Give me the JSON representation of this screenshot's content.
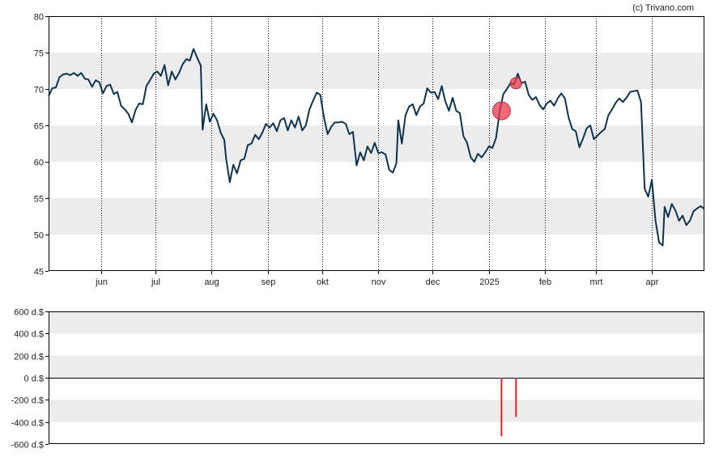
{
  "copyright": "(c) Trivano.com",
  "chart_data": [
    {
      "type": "line",
      "title": "",
      "xlabel": "",
      "ylabel": "",
      "ylim": [
        45,
        80
      ],
      "y_ticks": [
        45,
        50,
        55,
        60,
        65,
        70,
        75,
        80
      ],
      "x_start": "2024-05-03",
      "x_end": "2025-04-30",
      "x_tick_dates": [
        "2024-06-01",
        "2024-07-01",
        "2024-08-01",
        "2024-09-01",
        "2024-10-01",
        "2024-11-01",
        "2024-12-01",
        "2025-01-01",
        "2025-02-01",
        "2025-03-01",
        "2025-04-01"
      ],
      "x_tick_labels": [
        "jun",
        "jul",
        "aug",
        "sep",
        "okt",
        "nov",
        "dec",
        "2025",
        "feb",
        "mrt",
        "apr"
      ],
      "grid": "alternating horizontal bands, dotted vertical lines at month starts",
      "line_color": "#0e3350",
      "series": [
        {
          "points": [
            [
              "2024-05-03",
              69.0
            ],
            [
              "2024-05-05",
              70.1
            ],
            [
              "2024-05-07",
              70.2
            ],
            [
              "2024-05-09",
              71.6
            ],
            [
              "2024-05-11",
              72.0
            ],
            [
              "2024-05-13",
              72.1
            ],
            [
              "2024-05-15",
              71.9
            ],
            [
              "2024-05-17",
              72.2
            ],
            [
              "2024-05-19",
              71.8
            ],
            [
              "2024-05-21",
              72.2
            ],
            [
              "2024-05-23",
              71.4
            ],
            [
              "2024-05-25",
              71.3
            ],
            [
              "2024-05-27",
              70.3
            ],
            [
              "2024-05-29",
              71.2
            ],
            [
              "2024-05-31",
              70.9
            ],
            [
              "2024-06-02",
              69.4
            ],
            [
              "2024-06-04",
              70.4
            ],
            [
              "2024-06-06",
              70.6
            ],
            [
              "2024-06-08",
              69.3
            ],
            [
              "2024-06-10",
              69.6
            ],
            [
              "2024-06-12",
              67.7
            ],
            [
              "2024-06-14",
              67.2
            ],
            [
              "2024-06-16",
              66.6
            ],
            [
              "2024-06-18",
              65.4
            ],
            [
              "2024-06-20",
              67.1
            ],
            [
              "2024-06-22",
              68.0
            ],
            [
              "2024-06-24",
              67.9
            ],
            [
              "2024-06-26",
              70.4
            ],
            [
              "2024-06-28",
              71.2
            ],
            [
              "2024-06-30",
              72.1
            ],
            [
              "2024-07-02",
              72.4
            ],
            [
              "2024-07-04",
              71.8
            ],
            [
              "2024-07-06",
              73.3
            ],
            [
              "2024-07-08",
              70.5
            ],
            [
              "2024-07-10",
              72.4
            ],
            [
              "2024-07-12",
              71.3
            ],
            [
              "2024-07-14",
              72.2
            ],
            [
              "2024-07-16",
              73.4
            ],
            [
              "2024-07-18",
              74.1
            ],
            [
              "2024-07-20",
              73.9
            ],
            [
              "2024-07-22",
              75.5
            ],
            [
              "2024-07-24",
              74.3
            ],
            [
              "2024-07-26",
              73.2
            ],
            [
              "2024-07-27",
              64.4
            ],
            [
              "2024-07-29",
              67.9
            ],
            [
              "2024-07-31",
              65.5
            ],
            [
              "2024-08-02",
              66.6
            ],
            [
              "2024-08-04",
              65.7
            ],
            [
              "2024-08-06",
              64.0
            ],
            [
              "2024-08-08",
              63.0
            ],
            [
              "2024-08-09",
              60.4
            ],
            [
              "2024-08-11",
              57.2
            ],
            [
              "2024-08-13",
              59.6
            ],
            [
              "2024-08-15",
              58.4
            ],
            [
              "2024-08-17",
              60.2
            ],
            [
              "2024-08-19",
              60.4
            ],
            [
              "2024-08-21",
              62.3
            ],
            [
              "2024-08-23",
              62.5
            ],
            [
              "2024-08-25",
              63.7
            ],
            [
              "2024-08-27",
              63.1
            ],
            [
              "2024-08-29",
              64.0
            ],
            [
              "2024-08-31",
              65.2
            ],
            [
              "2024-09-02",
              64.7
            ],
            [
              "2024-09-04",
              65.3
            ],
            [
              "2024-09-06",
              64.2
            ],
            [
              "2024-09-08",
              65.7
            ],
            [
              "2024-09-10",
              66.0
            ],
            [
              "2024-09-12",
              64.3
            ],
            [
              "2024-09-14",
              65.7
            ],
            [
              "2024-09-16",
              64.7
            ],
            [
              "2024-09-18",
              66.2
            ],
            [
              "2024-09-20",
              64.3
            ],
            [
              "2024-09-22",
              65.0
            ],
            [
              "2024-09-24",
              67.2
            ],
            [
              "2024-09-26",
              68.4
            ],
            [
              "2024-09-28",
              69.5
            ],
            [
              "2024-09-30",
              69.2
            ],
            [
              "2024-10-02",
              66.1
            ],
            [
              "2024-10-04",
              63.8
            ],
            [
              "2024-10-06",
              64.8
            ],
            [
              "2024-10-08",
              65.4
            ],
            [
              "2024-10-10",
              65.4
            ],
            [
              "2024-10-12",
              65.5
            ],
            [
              "2024-10-14",
              65.2
            ],
            [
              "2024-10-16",
              63.8
            ],
            [
              "2024-10-18",
              64.1
            ],
            [
              "2024-10-20",
              59.5
            ],
            [
              "2024-10-22",
              61.3
            ],
            [
              "2024-10-24",
              60.2
            ],
            [
              "2024-10-26",
              62.1
            ],
            [
              "2024-10-28",
              61.2
            ],
            [
              "2024-10-30",
              62.6
            ],
            [
              "2024-11-01",
              61.2
            ],
            [
              "2024-11-03",
              61.3
            ],
            [
              "2024-11-05",
              61.0
            ],
            [
              "2024-11-07",
              58.9
            ],
            [
              "2024-11-09",
              58.5
            ],
            [
              "2024-11-11",
              59.8
            ],
            [
              "2024-11-12",
              65.7
            ],
            [
              "2024-11-14",
              62.5
            ],
            [
              "2024-11-16",
              66.4
            ],
            [
              "2024-11-18",
              67.6
            ],
            [
              "2024-11-20",
              67.9
            ],
            [
              "2024-11-22",
              66.4
            ],
            [
              "2024-11-24",
              67.6
            ],
            [
              "2024-11-26",
              68.0
            ],
            [
              "2024-11-28",
              70.1
            ],
            [
              "2024-11-30",
              69.5
            ],
            [
              "2024-12-02",
              69.6
            ],
            [
              "2024-12-04",
              68.6
            ],
            [
              "2024-12-06",
              70.4
            ],
            [
              "2024-12-08",
              68.3
            ],
            [
              "2024-12-10",
              67.0
            ],
            [
              "2024-12-12",
              68.8
            ],
            [
              "2024-12-14",
              67.0
            ],
            [
              "2024-12-16",
              66.7
            ],
            [
              "2024-12-18",
              63.5
            ],
            [
              "2024-12-20",
              62.6
            ],
            [
              "2024-12-22",
              60.6
            ],
            [
              "2024-12-24",
              60.0
            ],
            [
              "2024-12-26",
              61.1
            ],
            [
              "2024-12-28",
              60.6
            ],
            [
              "2024-12-30",
              61.3
            ],
            [
              "2025-01-01",
              62.1
            ],
            [
              "2025-01-03",
              61.9
            ],
            [
              "2025-01-05",
              63.3
            ],
            [
              "2025-01-07",
              67.0
            ],
            [
              "2025-01-09",
              69.3
            ],
            [
              "2025-01-11",
              70.0
            ],
            [
              "2025-01-13",
              70.8
            ],
            [
              "2025-01-15",
              70.6
            ],
            [
              "2025-01-17",
              72.1
            ],
            [
              "2025-01-19",
              70.8
            ],
            [
              "2025-01-21",
              71.0
            ],
            [
              "2025-01-23",
              69.2
            ],
            [
              "2025-01-25",
              68.5
            ],
            [
              "2025-01-27",
              68.9
            ],
            [
              "2025-01-29",
              67.8
            ],
            [
              "2025-01-31",
              67.2
            ],
            [
              "2025-02-02",
              68.0
            ],
            [
              "2025-02-04",
              68.4
            ],
            [
              "2025-02-06",
              67.7
            ],
            [
              "2025-02-08",
              68.7
            ],
            [
              "2025-02-10",
              69.4
            ],
            [
              "2025-02-12",
              68.7
            ],
            [
              "2025-02-14",
              66.1
            ],
            [
              "2025-02-16",
              64.5
            ],
            [
              "2025-02-18",
              64.2
            ],
            [
              "2025-02-20",
              62.0
            ],
            [
              "2025-02-22",
              63.2
            ],
            [
              "2025-02-24",
              64.6
            ],
            [
              "2025-02-26",
              65.0
            ],
            [
              "2025-02-28",
              63.1
            ],
            [
              "2025-03-02",
              63.6
            ],
            [
              "2025-03-04",
              64.1
            ],
            [
              "2025-03-06",
              64.5
            ],
            [
              "2025-03-08",
              66.4
            ],
            [
              "2025-03-10",
              67.2
            ],
            [
              "2025-03-12",
              68.1
            ],
            [
              "2025-03-14",
              68.7
            ],
            [
              "2025-03-16",
              68.2
            ],
            [
              "2025-03-18",
              68.8
            ],
            [
              "2025-03-20",
              69.6
            ],
            [
              "2025-03-22",
              69.7
            ],
            [
              "2025-03-24",
              69.8
            ],
            [
              "2025-03-26",
              68.2
            ],
            [
              "2025-03-28",
              56.3
            ],
            [
              "2025-03-30",
              55.2
            ],
            [
              "2025-04-01",
              57.5
            ],
            [
              "2025-04-03",
              51.9
            ],
            [
              "2025-04-05",
              48.9
            ],
            [
              "2025-04-07",
              48.5
            ],
            [
              "2025-04-08",
              53.8
            ],
            [
              "2025-04-10",
              52.4
            ],
            [
              "2025-04-12",
              54.2
            ],
            [
              "2025-04-14",
              53.3
            ],
            [
              "2025-04-16",
              51.9
            ],
            [
              "2025-04-18",
              52.6
            ],
            [
              "2025-04-20",
              51.3
            ],
            [
              "2025-04-22",
              51.9
            ],
            [
              "2025-04-24",
              53.2
            ],
            [
              "2025-04-26",
              53.6
            ],
            [
              "2025-04-28",
              53.9
            ],
            [
              "2025-04-30",
              53.5
            ]
          ]
        }
      ],
      "markers": [
        {
          "date": "2025-01-08",
          "value": 67.0,
          "size": "large",
          "color": "#e83a4a"
        },
        {
          "date": "2025-01-16",
          "value": 70.8,
          "size": "small",
          "color": "#e83a4a"
        }
      ]
    },
    {
      "type": "bar",
      "title": "",
      "xlabel": "",
      "ylabel": "",
      "ylim": [
        -600,
        600
      ],
      "y_ticks": [
        600,
        400,
        200,
        0,
        -200,
        -400,
        -600
      ],
      "y_tick_labels": [
        "600 d.$",
        "400 d.$",
        "200 d.$",
        "0 d.$",
        "-200 d.$",
        "-400 d.$",
        "-600 d.$"
      ],
      "grid": "alternating horizontal bands",
      "bar_color": "#d9232e",
      "bars": [
        {
          "date": "2025-01-08",
          "value": -530
        },
        {
          "date": "2025-01-16",
          "value": -355
        }
      ]
    }
  ]
}
